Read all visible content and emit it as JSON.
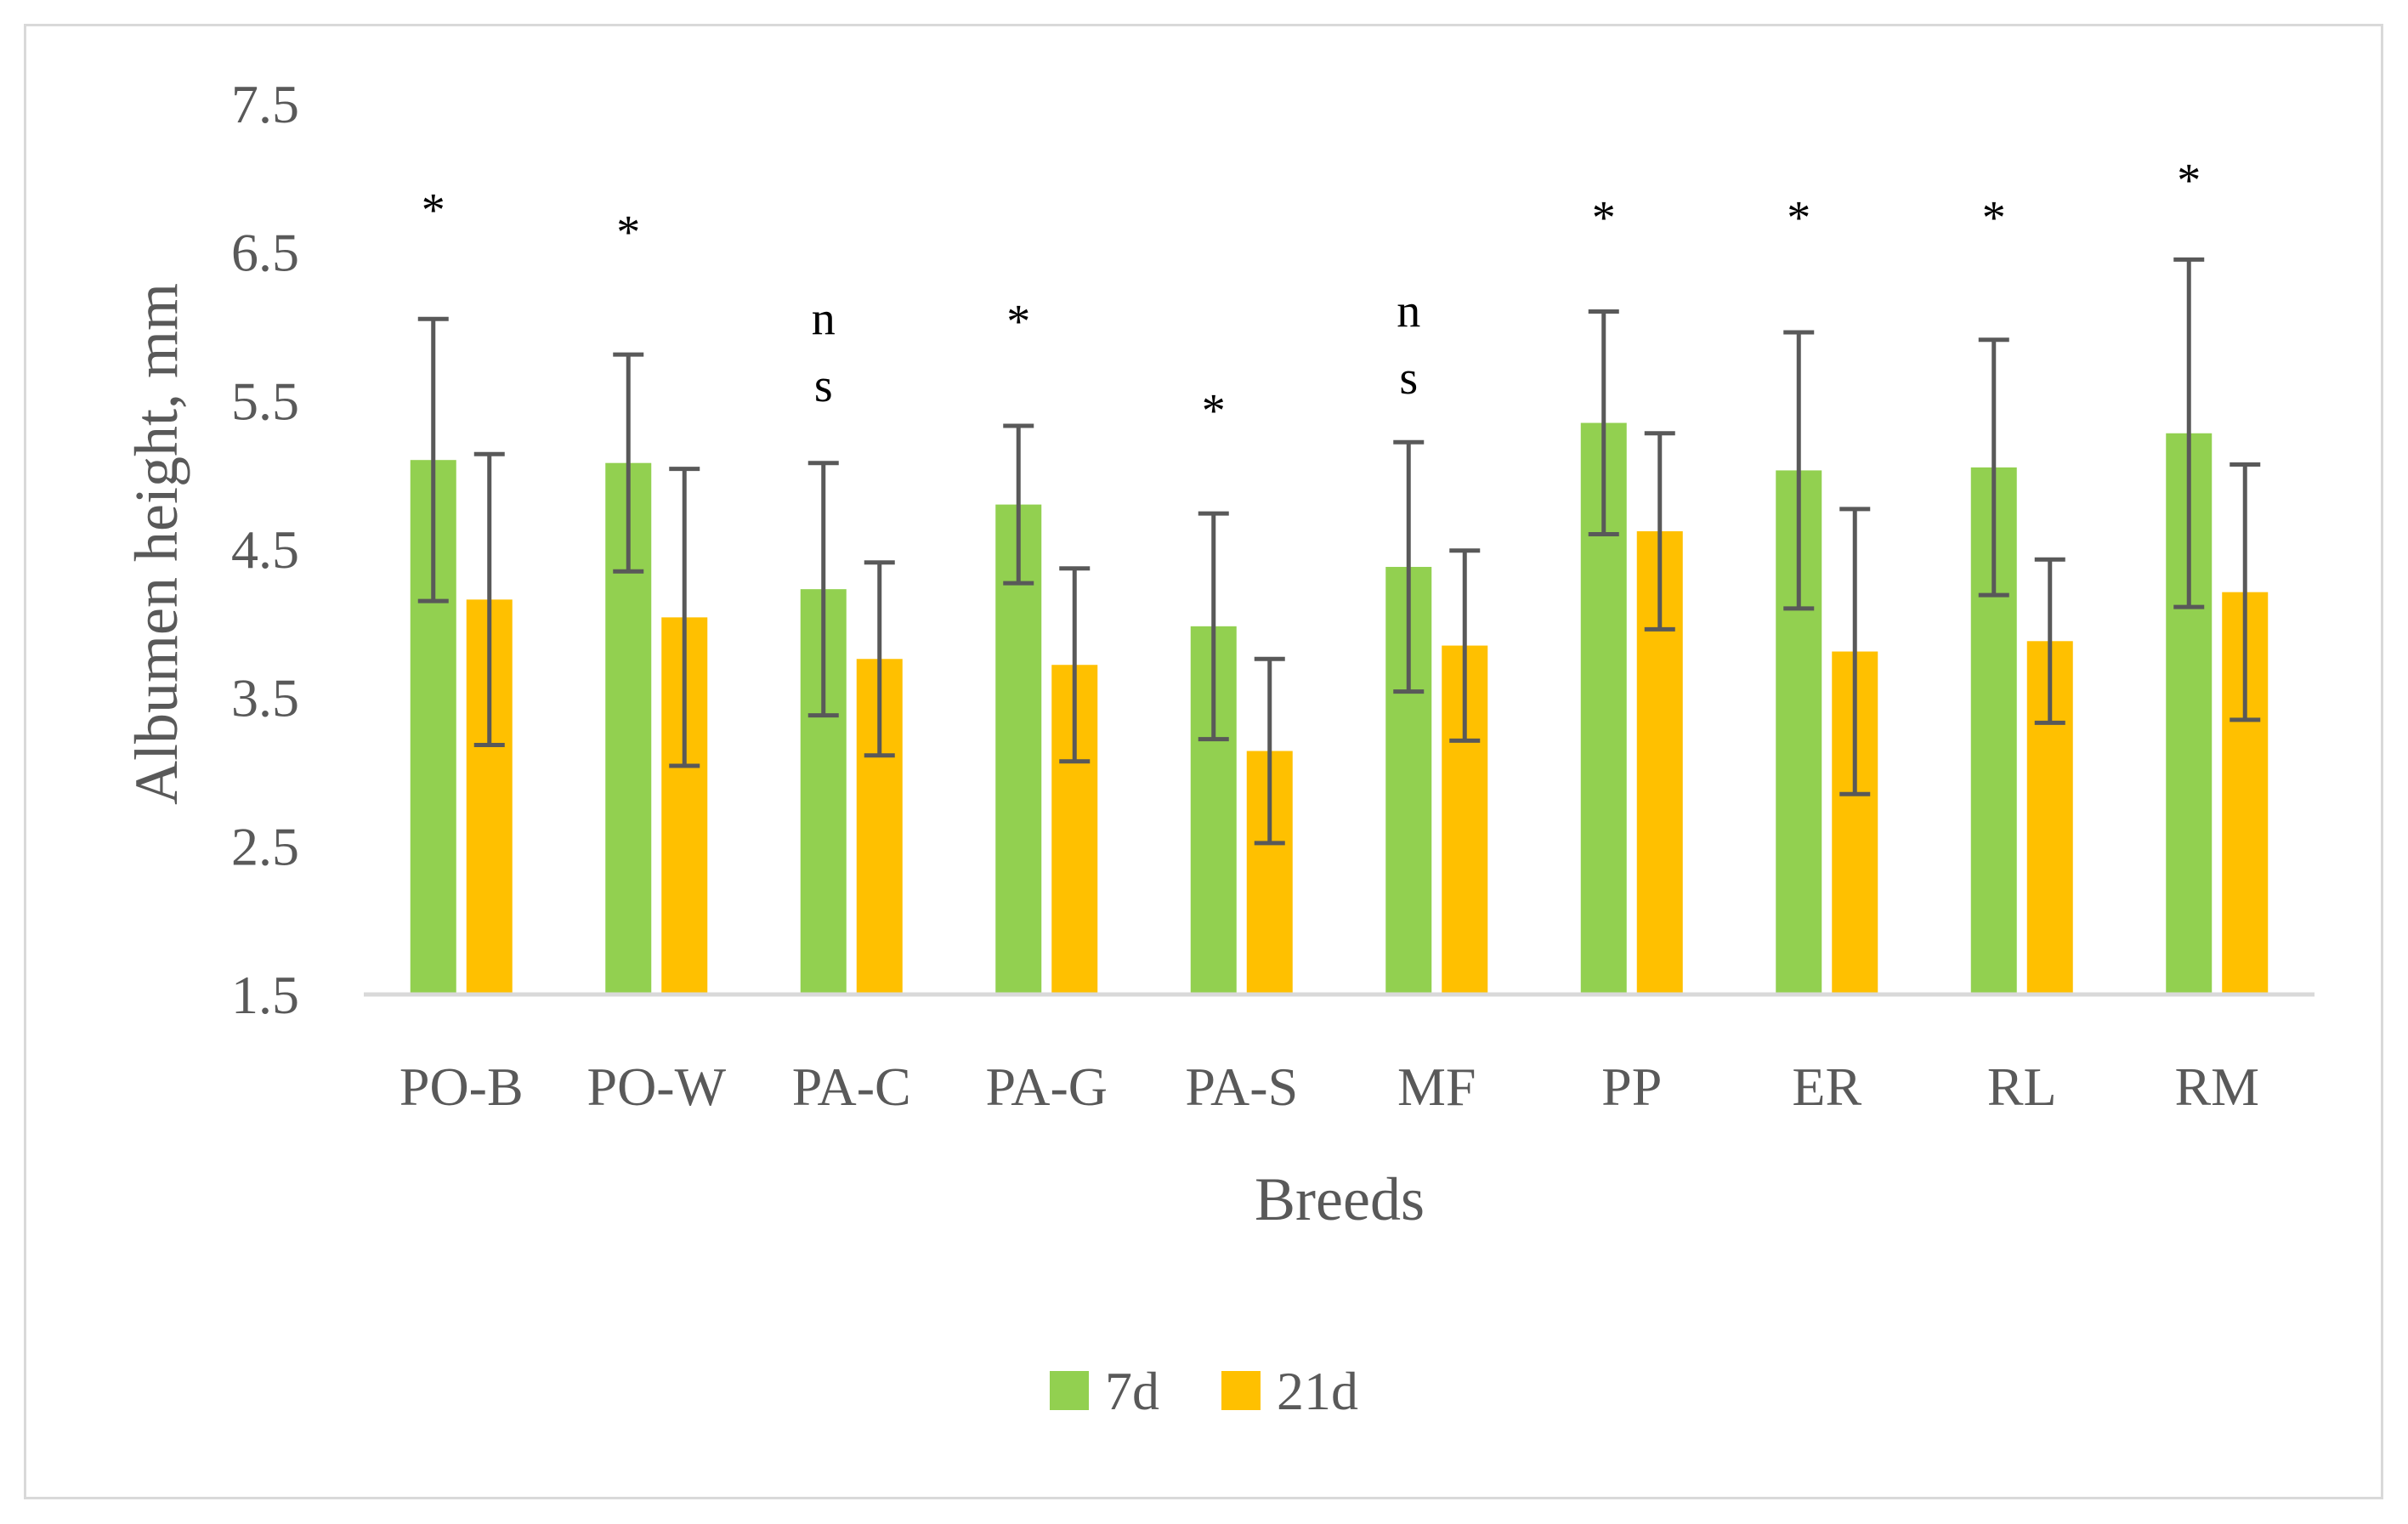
{
  "chart_data": {
    "type": "bar",
    "title": "",
    "xlabel": "Breeds",
    "ylabel": "Albumen height, mm",
    "ylim": [
      1.5,
      7.5
    ],
    "yticks": [
      "1.5",
      "2.5",
      "3.5",
      "4.5",
      "5.5",
      "6.5",
      "7.5"
    ],
    "grid": false,
    "legend_position": "bottom",
    "categories": [
      "PO-B",
      "PO-W",
      "PA-C",
      "PA-G",
      "PA-S",
      "MF",
      "PP",
      "ER",
      "RL",
      "RM"
    ],
    "series": [
      {
        "name": "7d",
        "color": "#92d050",
        "values": [
          5.1,
          5.08,
          4.23,
          4.8,
          3.98,
          4.38,
          5.35,
          5.03,
          5.05,
          5.28
        ],
        "errors": [
          0.95,
          0.73,
          0.85,
          0.53,
          0.76,
          0.84,
          0.75,
          0.93,
          0.86,
          1.17
        ]
      },
      {
        "name": "21d",
        "color": "#ffc000",
        "values": [
          4.16,
          4.04,
          3.76,
          3.72,
          3.14,
          3.85,
          4.62,
          3.81,
          3.88,
          4.21
        ],
        "errors": [
          0.98,
          1.0,
          0.65,
          0.65,
          0.62,
          0.64,
          0.66,
          0.96,
          0.55,
          0.86
        ]
      }
    ],
    "annotations": [
      {
        "category": "PO-B",
        "lines": [
          "*"
        ],
        "y": 6.85
      },
      {
        "category": "PO-W",
        "lines": [
          "*"
        ],
        "y": 6.7
      },
      {
        "category": "PA-C",
        "lines": [
          "n",
          "s"
        ],
        "y": [
          6.05,
          5.6
        ]
      },
      {
        "category": "PA-G",
        "lines": [
          "*"
        ],
        "y": 6.1
      },
      {
        "category": "PA-S",
        "lines": [
          "*"
        ],
        "y": 5.5
      },
      {
        "category": "MF",
        "lines": [
          "n",
          "s"
        ],
        "y": [
          6.1,
          5.65
        ]
      },
      {
        "category": "PP",
        "lines": [
          "*"
        ],
        "y": 6.8
      },
      {
        "category": "ER",
        "lines": [
          "*"
        ],
        "y": 6.8
      },
      {
        "category": "RL",
        "lines": [
          "*"
        ],
        "y": 6.8
      },
      {
        "category": "RM",
        "lines": [
          "*"
        ],
        "y": 7.05
      }
    ]
  },
  "colors": {
    "axis_line": "#d9d9d9",
    "error_bar": "#595959",
    "text": "#595959"
  }
}
